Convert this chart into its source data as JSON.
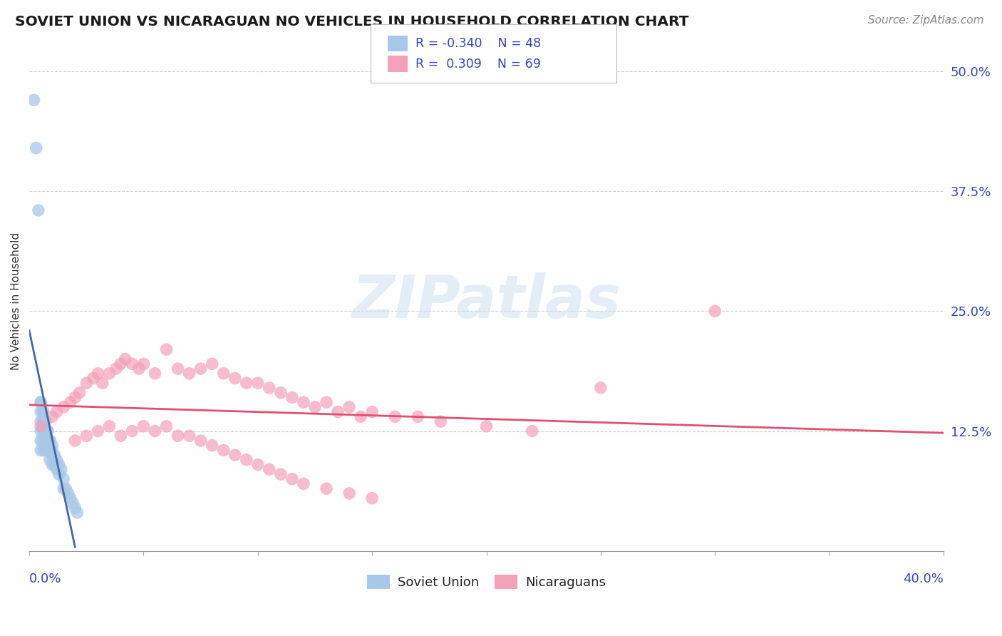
{
  "title": "SOVIET UNION VS NICARAGUAN NO VEHICLES IN HOUSEHOLD CORRELATION CHART",
  "source": "Source: ZipAtlas.com",
  "ylabel": "No Vehicles in Household",
  "xlim": [
    0.0,
    0.4
  ],
  "ylim": [
    0.0,
    0.52
  ],
  "yticks": [
    0.0,
    0.125,
    0.25,
    0.375,
    0.5
  ],
  "ytick_labels": [
    "",
    "12.5%",
    "25.0%",
    "37.5%",
    "50.0%"
  ],
  "color_soviet": "#a8c8e8",
  "color_nicaraguan": "#f4a0b8",
  "color_soviet_line": "#4466aa",
  "color_nicaraguan_line": "#e05070",
  "color_grid": "#cccccc",
  "watermark_color": "#cce0f0",
  "soviet_r": -0.34,
  "soviet_n": 48,
  "nicaraguan_r": 0.309,
  "nicaraguan_n": 69,
  "su_x": [
    0.002,
    0.003,
    0.004,
    0.005,
    0.005,
    0.005,
    0.005,
    0.005,
    0.005,
    0.006,
    0.006,
    0.006,
    0.006,
    0.006,
    0.007,
    0.007,
    0.007,
    0.007,
    0.008,
    0.008,
    0.008,
    0.009,
    0.009,
    0.009,
    0.01,
    0.01,
    0.01,
    0.011,
    0.011,
    0.012,
    0.012,
    0.013,
    0.013,
    0.014,
    0.015,
    0.015,
    0.016,
    0.017,
    0.018,
    0.019,
    0.02,
    0.021,
    0.005,
    0.006,
    0.007,
    0.008,
    0.009,
    0.01
  ],
  "su_y": [
    0.47,
    0.42,
    0.355,
    0.155,
    0.145,
    0.135,
    0.125,
    0.115,
    0.105,
    0.145,
    0.135,
    0.125,
    0.115,
    0.105,
    0.135,
    0.125,
    0.115,
    0.105,
    0.125,
    0.115,
    0.105,
    0.115,
    0.105,
    0.095,
    0.11,
    0.1,
    0.09,
    0.1,
    0.09,
    0.095,
    0.085,
    0.09,
    0.08,
    0.085,
    0.075,
    0.065,
    0.065,
    0.06,
    0.055,
    0.05,
    0.045,
    0.04,
    0.155,
    0.145,
    0.135,
    0.125,
    0.115,
    0.105
  ],
  "nic_x": [
    0.005,
    0.01,
    0.012,
    0.015,
    0.018,
    0.02,
    0.022,
    0.025,
    0.028,
    0.03,
    0.032,
    0.035,
    0.038,
    0.04,
    0.042,
    0.045,
    0.048,
    0.05,
    0.055,
    0.06,
    0.065,
    0.07,
    0.075,
    0.08,
    0.085,
    0.09,
    0.095,
    0.1,
    0.105,
    0.11,
    0.115,
    0.12,
    0.125,
    0.13,
    0.135,
    0.14,
    0.145,
    0.15,
    0.16,
    0.17,
    0.18,
    0.2,
    0.22,
    0.25,
    0.3,
    0.02,
    0.025,
    0.03,
    0.035,
    0.04,
    0.045,
    0.05,
    0.055,
    0.06,
    0.065,
    0.07,
    0.075,
    0.08,
    0.085,
    0.09,
    0.095,
    0.1,
    0.105,
    0.11,
    0.115,
    0.12,
    0.13,
    0.14,
    0.15
  ],
  "nic_y": [
    0.13,
    0.14,
    0.145,
    0.15,
    0.155,
    0.16,
    0.165,
    0.175,
    0.18,
    0.185,
    0.175,
    0.185,
    0.19,
    0.195,
    0.2,
    0.195,
    0.19,
    0.195,
    0.185,
    0.21,
    0.19,
    0.185,
    0.19,
    0.195,
    0.185,
    0.18,
    0.175,
    0.175,
    0.17,
    0.165,
    0.16,
    0.155,
    0.15,
    0.155,
    0.145,
    0.15,
    0.14,
    0.145,
    0.14,
    0.14,
    0.135,
    0.13,
    0.125,
    0.17,
    0.25,
    0.115,
    0.12,
    0.125,
    0.13,
    0.12,
    0.125,
    0.13,
    0.125,
    0.13,
    0.12,
    0.12,
    0.115,
    0.11,
    0.105,
    0.1,
    0.095,
    0.09,
    0.085,
    0.08,
    0.075,
    0.07,
    0.065,
    0.06,
    0.055
  ]
}
